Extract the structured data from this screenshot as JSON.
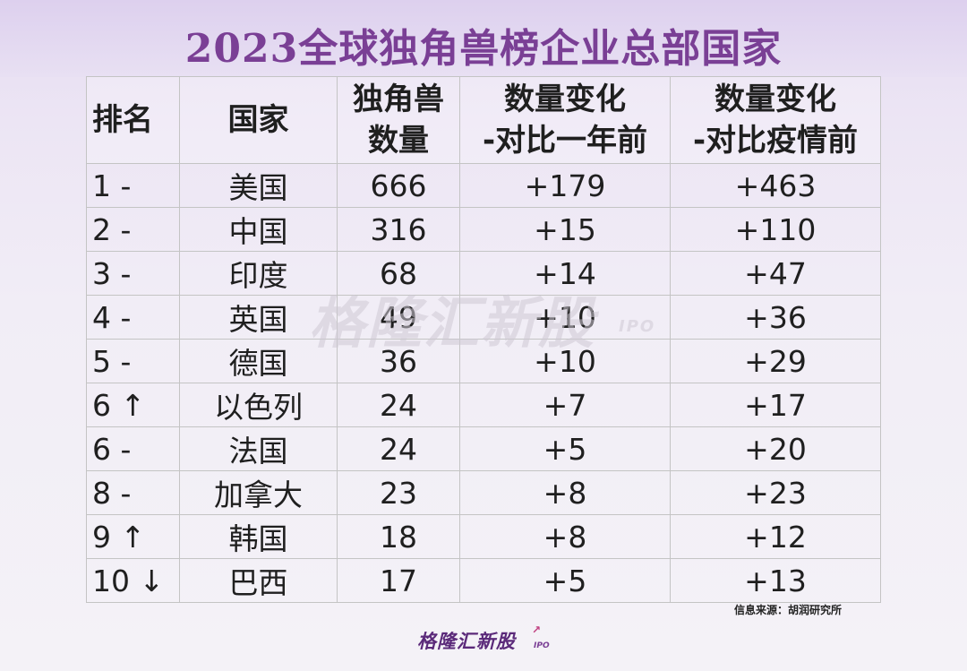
{
  "chart_data": {
    "type": "table",
    "title": "2023全球独角兽榜企业总部国家",
    "columns": [
      {
        "line1": "排名",
        "line2": ""
      },
      {
        "line1": "国家",
        "line2": ""
      },
      {
        "line1": "独角兽",
        "line2": "数量"
      },
      {
        "line1": "数量变化",
        "line2": "-对比一年前"
      },
      {
        "line1": "数量变化",
        "line2": "-对比疫情前"
      }
    ],
    "rows": [
      {
        "rank": "1 -",
        "country": "美国",
        "count": "666",
        "change_1y": "+179",
        "change_pre_pandemic": "+463"
      },
      {
        "rank": "2 -",
        "country": "中国",
        "count": "316",
        "change_1y": "+15",
        "change_pre_pandemic": "+110"
      },
      {
        "rank": "3 -",
        "country": "印度",
        "count": "68",
        "change_1y": "+14",
        "change_pre_pandemic": "+47"
      },
      {
        "rank": "4 -",
        "country": "英国",
        "count": "49",
        "change_1y": "+10",
        "change_pre_pandemic": "+36"
      },
      {
        "rank": "5 -",
        "country": "德国",
        "count": "36",
        "change_1y": "+10",
        "change_pre_pandemic": "+29"
      },
      {
        "rank": "6 ↑",
        "country": "以色列",
        "count": "24",
        "change_1y": "+7",
        "change_pre_pandemic": "+17"
      },
      {
        "rank": "6 -",
        "country": "法国",
        "count": "24",
        "change_1y": "+5",
        "change_pre_pandemic": "+20"
      },
      {
        "rank": "8 -",
        "country": "加拿大",
        "count": "23",
        "change_1y": "+8",
        "change_pre_pandemic": "+23"
      },
      {
        "rank": "9 ↑",
        "country": "韩国",
        "count": "18",
        "change_1y": "+8",
        "change_pre_pandemic": "+12"
      },
      {
        "rank": "10 ↓",
        "country": "巴西",
        "count": "17",
        "change_1y": "+5",
        "change_pre_pandemic": "+13"
      }
    ],
    "source": "信息来源：胡润研究所"
  },
  "watermark": {
    "name": "格隆汇新股",
    "sub": "IPO"
  },
  "footer": {
    "name": "格隆汇新股",
    "sub": "IPO"
  },
  "colors": {
    "title": "#7a3f95",
    "accent": "#5b2a7a"
  }
}
